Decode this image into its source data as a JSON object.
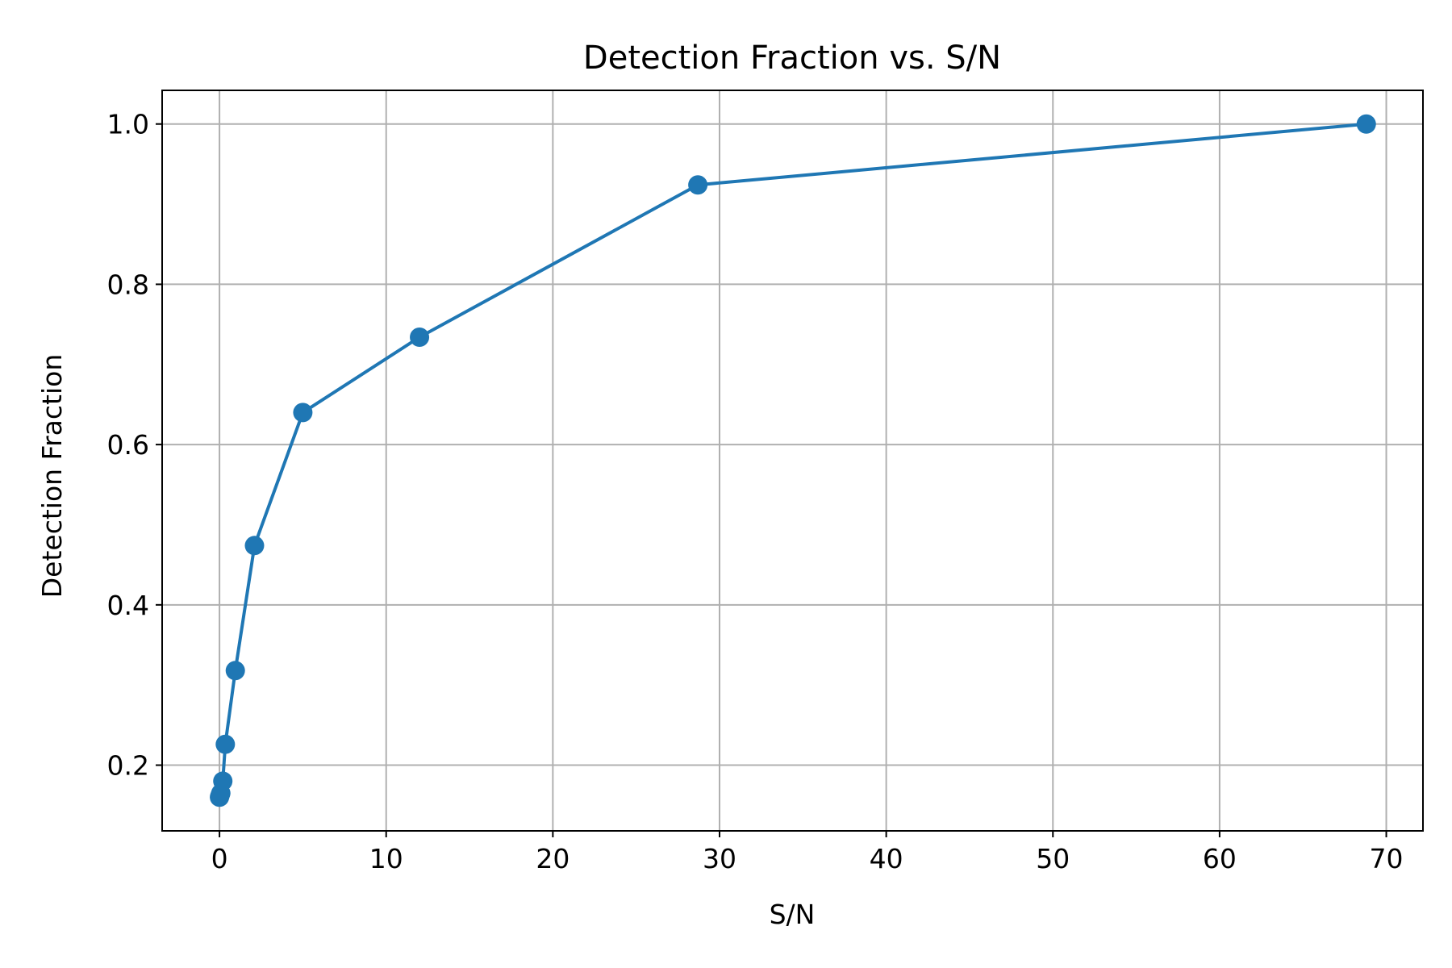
{
  "chart_data": {
    "type": "line",
    "title": "Detection Fraction vs. S/N",
    "xlabel": "S/N",
    "ylabel": "Detection Fraction",
    "xlim": [
      -3.44,
      72.2
    ],
    "ylim": [
      0.118,
      1.042
    ],
    "xticks": [
      0,
      10,
      20,
      30,
      40,
      50,
      60,
      70
    ],
    "yticks": [
      0.2,
      0.4,
      0.6,
      0.8,
      1.0
    ],
    "ytick_labels": [
      "0.2",
      "0.4",
      "0.6",
      "0.8",
      "1.0"
    ],
    "grid": true,
    "color": "#1f77b4",
    "series": [
      {
        "x": [
          0.0,
          0.03,
          0.08,
          0.2,
          0.35,
          0.95,
          2.1,
          5.0,
          12.0,
          28.7,
          68.8
        ],
        "y": [
          0.16,
          0.162,
          0.165,
          0.18,
          0.226,
          0.318,
          0.474,
          0.64,
          0.734,
          0.924,
          1.0
        ]
      }
    ]
  }
}
